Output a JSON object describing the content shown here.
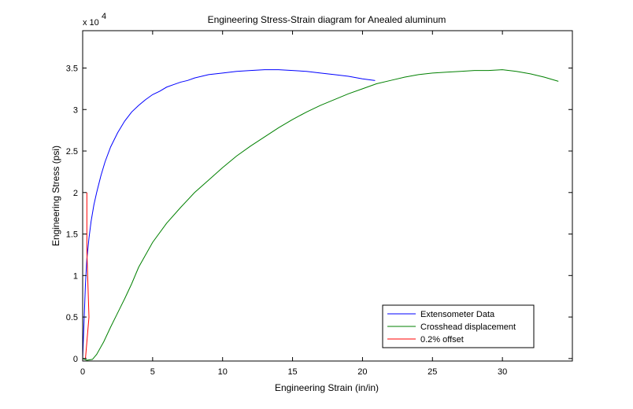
{
  "chart_data": {
    "type": "line",
    "title": "Engineering Stress-Strain diagram for Anealed aluminum",
    "xlabel": "Engineering Strain (in/in)",
    "ylabel": "Engineering Stress (psi)",
    "y_multiplier_label": "x 10",
    "y_multiplier_exponent": "4",
    "xlim": [
      0,
      35
    ],
    "ylim": [
      -0.03,
      3.95
    ],
    "x_ticks": [
      0,
      5,
      10,
      15,
      20,
      25,
      30
    ],
    "y_ticks": [
      0,
      0.5,
      1,
      1.5,
      2,
      2.5,
      3,
      3.5
    ],
    "x_tick_labels": [
      "0",
      "5",
      "10",
      "15",
      "20",
      "25",
      "30"
    ],
    "y_tick_labels": [
      "0",
      "0.5",
      "1",
      "1.5",
      "2",
      "2.5",
      "3",
      "3.5"
    ],
    "grid": false,
    "legend_position": "bottom-right",
    "series": [
      {
        "name": "Extensometer Data",
        "color": "#0000ff",
        "x": [
          0.0,
          0.1,
          0.2,
          0.3,
          0.45,
          0.6,
          0.8,
          1.0,
          1.3,
          1.6,
          2.0,
          2.5,
          3.0,
          3.5,
          4.0,
          4.5,
          5.0,
          5.5,
          6.0,
          6.5,
          7.0,
          7.5,
          8.0,
          8.5,
          9.0,
          10.0,
          11.0,
          12.0,
          13.0,
          14.0,
          15.0,
          16.0,
          17.0,
          18.0,
          19.0,
          20.0,
          20.9
        ],
        "y": [
          0.0,
          0.45,
          0.9,
          1.2,
          1.45,
          1.65,
          1.85,
          2.0,
          2.2,
          2.37,
          2.55,
          2.72,
          2.86,
          2.97,
          3.05,
          3.12,
          3.18,
          3.22,
          3.27,
          3.3,
          3.33,
          3.35,
          3.38,
          3.4,
          3.42,
          3.44,
          3.46,
          3.47,
          3.48,
          3.48,
          3.47,
          3.46,
          3.44,
          3.42,
          3.4,
          3.37,
          3.35
        ]
      },
      {
        "name": "Crosshead displacement",
        "color": "#008000",
        "x": [
          0.0,
          0.3,
          0.7,
          1.0,
          1.5,
          2.0,
          2.5,
          3.0,
          3.5,
          4.0,
          5.0,
          6.0,
          7.0,
          8.0,
          9.0,
          10.0,
          11.0,
          12.0,
          13.0,
          14.0,
          15.0,
          16.0,
          17.0,
          18.0,
          19.0,
          20.0,
          21.0,
          22.0,
          23.0,
          24.0,
          25.0,
          26.0,
          27.0,
          28.0,
          29.0,
          30.0,
          31.0,
          32.0,
          33.0,
          34.0
        ],
        "y": [
          0.0,
          -0.02,
          -0.01,
          0.05,
          0.2,
          0.38,
          0.55,
          0.72,
          0.9,
          1.1,
          1.4,
          1.63,
          1.82,
          2.0,
          2.15,
          2.3,
          2.44,
          2.56,
          2.67,
          2.78,
          2.88,
          2.97,
          3.05,
          3.12,
          3.19,
          3.25,
          3.31,
          3.35,
          3.39,
          3.42,
          3.44,
          3.45,
          3.46,
          3.47,
          3.47,
          3.48,
          3.46,
          3.43,
          3.39,
          3.34
        ]
      },
      {
        "name": "0.2% offset",
        "color": "#ff0000",
        "x": [
          0.2,
          0.45,
          0.3,
          0.3
        ],
        "y": [
          0.0,
          0.5,
          1.3,
          2.0
        ]
      }
    ]
  }
}
